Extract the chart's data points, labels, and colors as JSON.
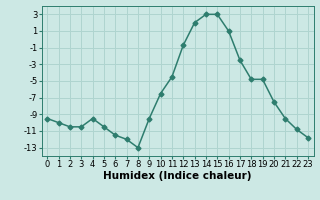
{
  "x": [
    0,
    1,
    2,
    3,
    4,
    5,
    6,
    7,
    8,
    9,
    10,
    11,
    12,
    13,
    14,
    15,
    16,
    17,
    18,
    19,
    20,
    21,
    22,
    23
  ],
  "y": [
    -9.5,
    -10.0,
    -10.5,
    -10.5,
    -9.5,
    -10.5,
    -11.5,
    -12.0,
    -13.0,
    -9.5,
    -6.5,
    -4.5,
    -0.7,
    2.0,
    3.0,
    3.0,
    1.0,
    -2.5,
    -4.8,
    -4.8,
    -7.5,
    -9.5,
    -10.8,
    -11.8
  ],
  "line_color": "#2e7d6e",
  "marker": "D",
  "markersize": 2.5,
  "linewidth": 1.1,
  "bg_color": "#cce8e4",
  "grid_color": "#afd4cf",
  "xlabel": "Humidex (Indice chaleur)",
  "xlim": [
    -0.5,
    23.5
  ],
  "ylim": [
    -14,
    4
  ],
  "yticks": [
    3,
    1,
    -1,
    -3,
    -5,
    -7,
    -9,
    -11,
    -13
  ],
  "xticks": [
    0,
    1,
    2,
    3,
    4,
    5,
    6,
    7,
    8,
    9,
    10,
    11,
    12,
    13,
    14,
    15,
    16,
    17,
    18,
    19,
    20,
    21,
    22,
    23
  ],
  "tick_fontsize": 6.0,
  "xlabel_fontsize": 7.5,
  "xlabel_fontweight": "bold"
}
